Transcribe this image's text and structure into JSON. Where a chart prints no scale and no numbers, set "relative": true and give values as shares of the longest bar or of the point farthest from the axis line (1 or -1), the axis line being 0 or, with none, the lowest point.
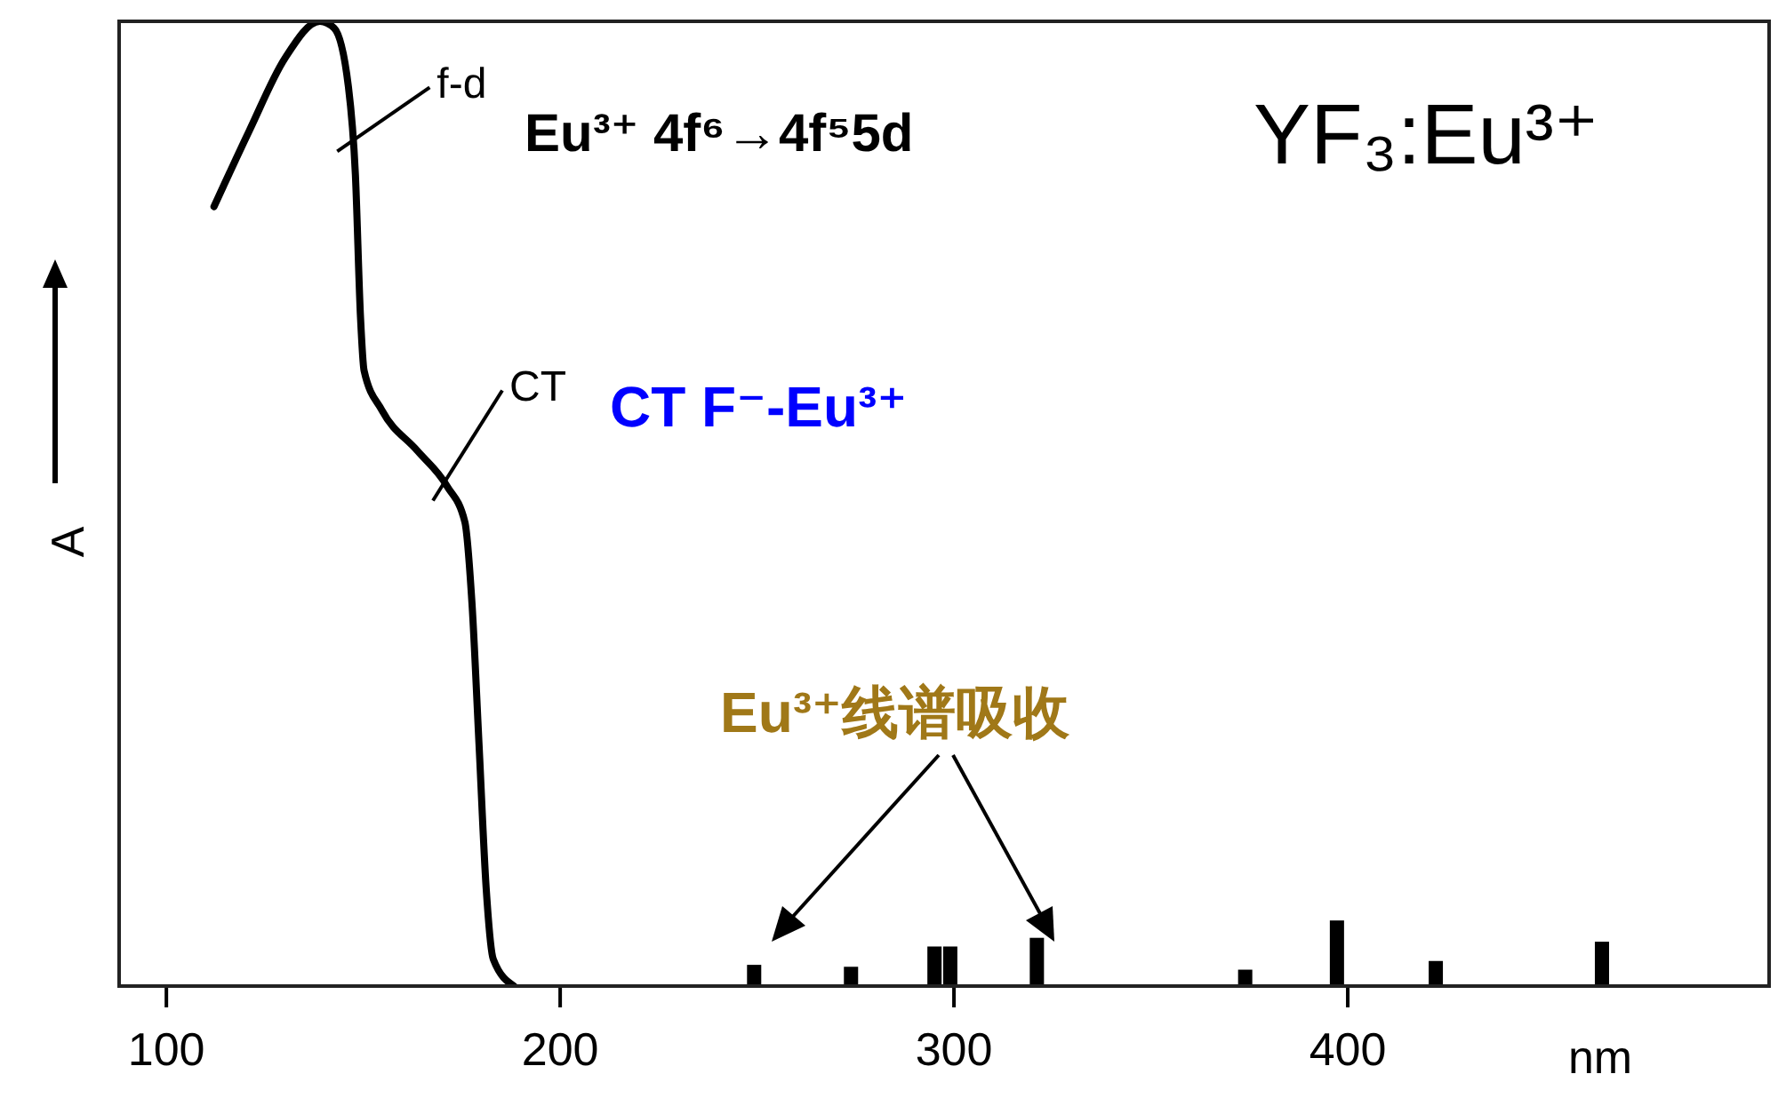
{
  "chart_data": {
    "type": "line",
    "title": "YF₃:Eu³⁺",
    "xlabel": "nm",
    "ylabel": "A",
    "relative": true,
    "xlim": [
      88,
      507
    ],
    "xticks": [
      100,
      200,
      300,
      400
    ],
    "marker": "none",
    "line_style": "solid",
    "series": [
      {
        "color": "#000000",
        "x": [
          112.1,
          121.1,
          130.0,
          139.0,
          142.6,
          146.2,
          148.0,
          149.3,
          150.2,
          154.7,
          163.7,
          171.3,
          175.8,
          177.6,
          179.4,
          181.2,
          183.0,
          188.3
        ],
        "values": [
          0.808,
          0.887,
          0.961,
          1.0,
          0.993,
          0.933,
          0.841,
          0.693,
          0.638,
          0.597,
          0.555,
          0.518,
          0.481,
          0.397,
          0.25,
          0.102,
          0.028,
          0
        ]
      },
      {
        "type": "bar",
        "color": "#000000",
        "x": [
          249.3,
          273.9,
          295.1,
          299.1,
          321.1,
          374.0,
          397.3,
          422.4,
          464.6
        ],
        "values": [
          0.022,
          0.02,
          0.041,
          0.041,
          0.05,
          0.017,
          0.068,
          0.026,
          0.046
        ]
      }
    ],
    "annotations": [
      {
        "text": "f-d",
        "x": 147,
        "y": 0.88
      },
      "Eu³⁺ 4f⁶→4f⁵5d",
      {
        "text": "CT",
        "x": 171.3,
        "y": 0.518
      },
      "CT  F⁻-Eu³⁺",
      "Eu³⁺线谱吸收"
    ]
  }
}
